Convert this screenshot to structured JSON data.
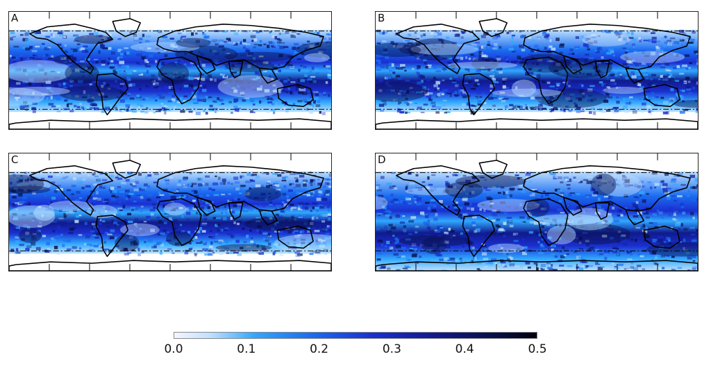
{
  "panels": [
    {
      "id": "a",
      "label": "A"
    },
    {
      "id": "b",
      "label": "B"
    },
    {
      "id": "c",
      "label": "C"
    },
    {
      "id": "d",
      "label": "D"
    }
  ],
  "colorbar": {
    "min": 0.0,
    "max": 0.5,
    "ticks": [
      "0.0",
      "0.1",
      "0.2",
      "0.3",
      "0.4",
      "0.5"
    ],
    "colors": [
      "#f4f6ff",
      "#bfe0ff",
      "#30a8ff",
      "#1a6cf0",
      "#1a2fd0",
      "#101a8c",
      "#08104a",
      "#000010"
    ]
  }
}
